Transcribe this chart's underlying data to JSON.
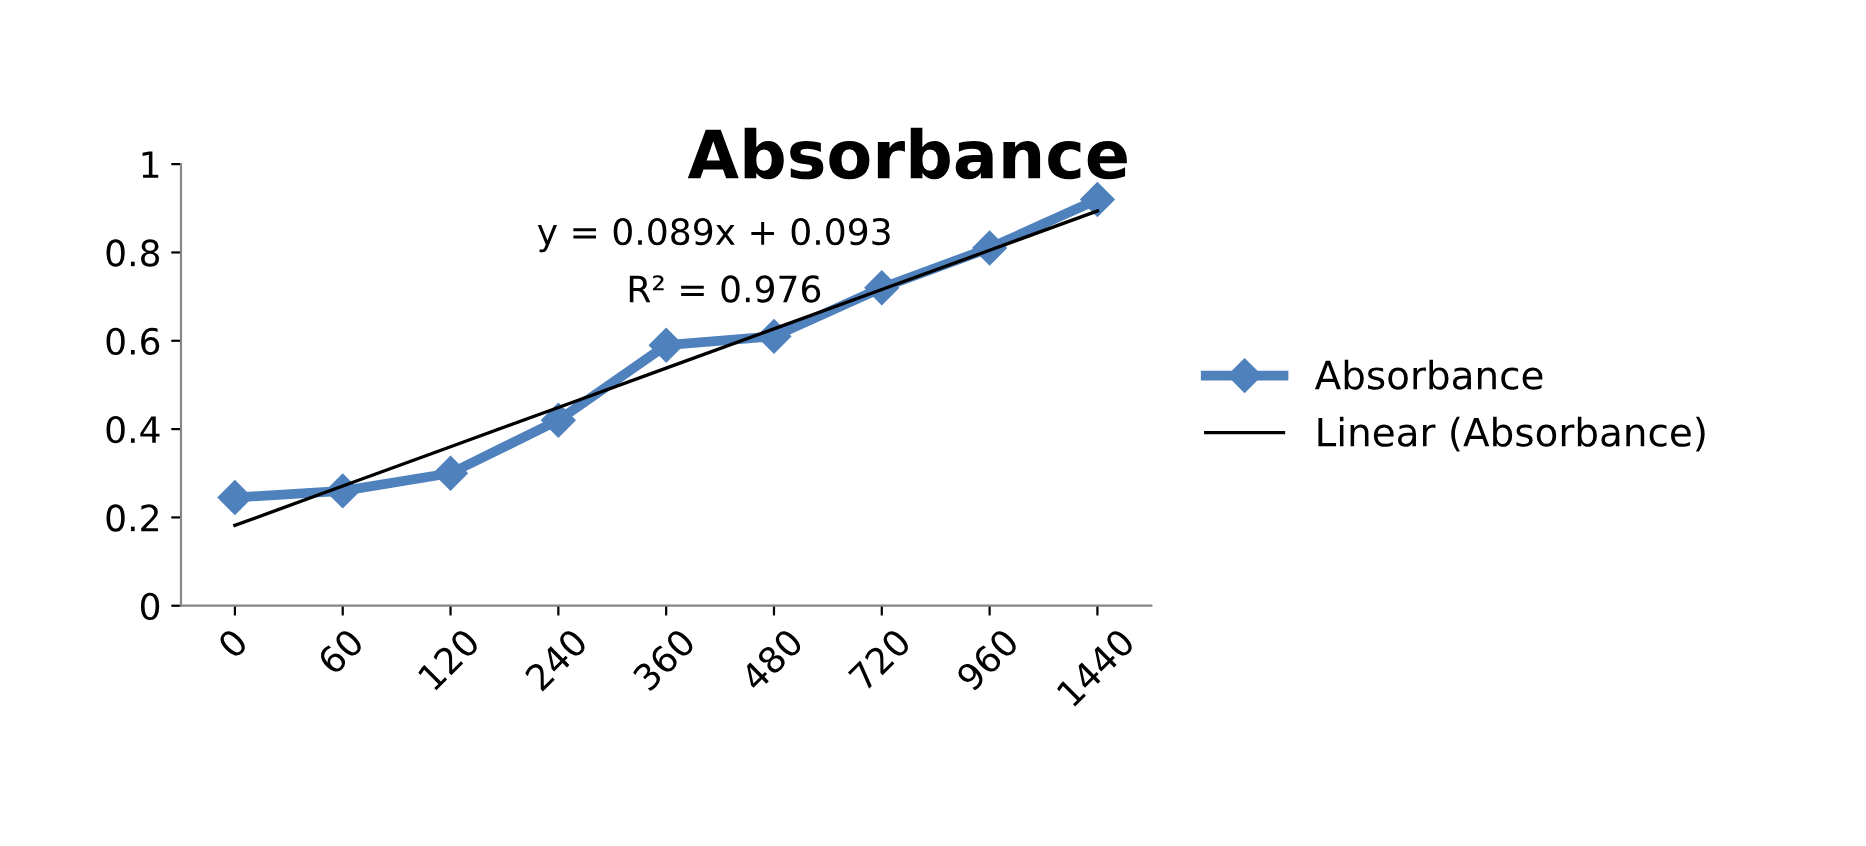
{
  "chart_data": {
    "type": "line",
    "title": "Absorbance",
    "categories": [
      "0",
      "60",
      "120",
      "240",
      "360",
      "480",
      "720",
      "960",
      "1440"
    ],
    "series": [
      {
        "name": "Absorbance",
        "color": "#4f81bd",
        "marker": "diamond",
        "values": [
          0.245,
          0.26,
          0.3,
          0.42,
          0.59,
          0.61,
          0.72,
          0.81,
          0.92
        ]
      },
      {
        "name": "Linear (Absorbance)",
        "color": "#000000",
        "marker": "none",
        "values": [
          0.182,
          0.271,
          0.36,
          0.449,
          0.538,
          0.627,
          0.716,
          0.805,
          0.894
        ]
      }
    ],
    "ylim": [
      0,
      1
    ],
    "yticks": [
      0,
      0.2,
      0.4,
      0.6,
      0.8,
      1
    ],
    "grid": false,
    "legend": "right",
    "annotations": [
      "y = 0.089x + 0.093",
      "R² = 0.976"
    ]
  }
}
